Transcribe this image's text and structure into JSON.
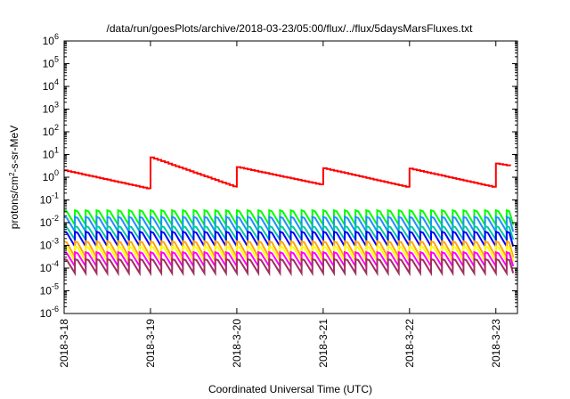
{
  "chart_data": {
    "type": "line",
    "title": "/data/run/goesPlots/archive/2018-03-23/05:00/flux/../flux/5daysMarsFluxes.txt",
    "xlabel": "Coordinated Universal Time (UTC)",
    "ylabel_parts": {
      "base": "protons/cm",
      "sup": "2",
      "rest": "-s-sr-MeV"
    },
    "y_scale": "log",
    "ylim_exp": [
      -6,
      6
    ],
    "y_ticks": [
      {
        "b": "10",
        "e": "-6"
      },
      {
        "b": "10",
        "e": "-5"
      },
      {
        "b": "10",
        "e": "-4"
      },
      {
        "b": "10",
        "e": "-3"
      },
      {
        "b": "10",
        "e": "-2"
      },
      {
        "b": "10",
        "e": "-1"
      },
      {
        "b": "10",
        "e": "0"
      },
      {
        "b": "10",
        "e": "1"
      },
      {
        "b": "10",
        "e": "2"
      },
      {
        "b": "10",
        "e": "3"
      },
      {
        "b": "10",
        "e": "4"
      },
      {
        "b": "10",
        "e": "5"
      },
      {
        "b": "10",
        "e": "6"
      }
    ],
    "xlim_days": [
      0,
      5.25
    ],
    "x_ticks": [
      {
        "label": "2018-3-18",
        "day": 0
      },
      {
        "label": "2018-3-19",
        "day": 1
      },
      {
        "label": "2018-3-20",
        "day": 2
      },
      {
        "label": "2018-3-21",
        "day": 3
      },
      {
        "label": "2018-3-22",
        "day": 4
      },
      {
        "label": "2018-3-23",
        "day": 5
      }
    ],
    "grid": false,
    "legend": "none",
    "series": [
      {
        "color": "#ff0000",
        "sawtooth": {
          "period_days": 1,
          "start_day": 0,
          "end_day": 5.2,
          "cycle_peaks": [
            2.0,
            7.5,
            2.8,
            2.5,
            2.4,
            4.0
          ],
          "cycle_troughs": [
            0.3,
            0.35,
            0.45,
            0.35,
            0.35,
            1.0
          ],
          "step_days": 0.041667,
          "step_size": 0.08
        }
      },
      {
        "color": "#00ff00",
        "sawtooth": {
          "period_days": 0.125,
          "start_day": 0,
          "end_day": 5.2,
          "high": 0.035,
          "low": 0.008
        }
      },
      {
        "color": "#1e90ff",
        "sawtooth": {
          "period_days": 0.125,
          "start_day": 0,
          "end_day": 5.2,
          "high": 0.018,
          "low": 0.004
        }
      },
      {
        "color": "#00c8a0",
        "sawtooth": {
          "period_days": 0.125,
          "start_day": 0,
          "end_day": 5.2,
          "high": 0.007,
          "low": 0.0018
        }
      },
      {
        "color": "#0000ff",
        "sawtooth": {
          "period_days": 0.125,
          "start_day": 0,
          "end_day": 5.2,
          "high": 0.004,
          "low": 0.0009
        }
      },
      {
        "color": "#ffa500",
        "sawtooth": {
          "period_days": 0.125,
          "start_day": 0,
          "end_day": 5.2,
          "high": 0.0015,
          "low": 0.0003
        }
      },
      {
        "color": "#ffff00",
        "sawtooth": {
          "period_days": 0.125,
          "start_day": 0,
          "end_day": 5.2,
          "high": 0.0009,
          "low": 0.0002
        }
      },
      {
        "color": "#ff00ff",
        "sawtooth": {
          "period_days": 0.125,
          "start_day": 0,
          "end_day": 5.2,
          "high": 0.0005,
          "low": 0.00012
        }
      },
      {
        "color": "#a03060",
        "sawtooth": {
          "period_days": 0.125,
          "start_day": 0,
          "end_day": 5.2,
          "high": 0.00025,
          "low": 6e-05
        }
      }
    ]
  }
}
